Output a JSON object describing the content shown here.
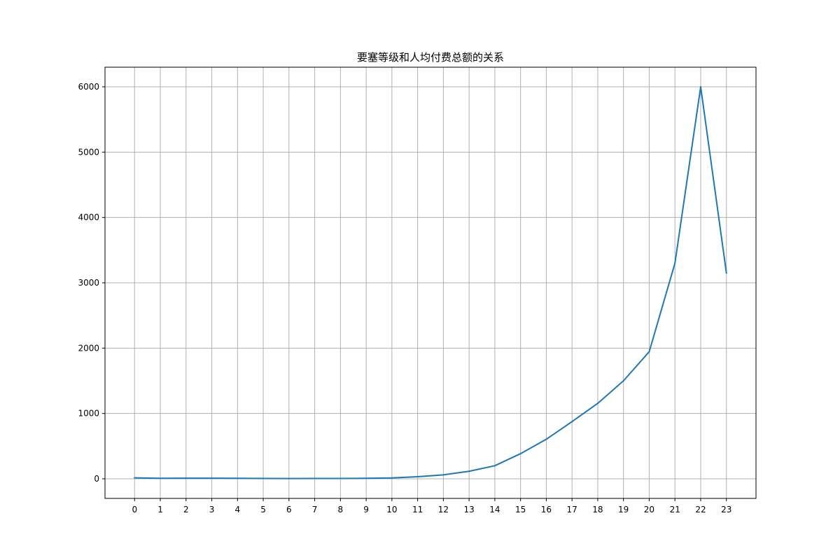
{
  "chart_data": {
    "type": "line",
    "title": "要塞等级和人均付费总额的关系",
    "xlabel": "",
    "ylabel": "",
    "x": [
      0,
      1,
      2,
      3,
      4,
      5,
      6,
      7,
      8,
      9,
      10,
      11,
      12,
      13,
      14,
      15,
      16,
      17,
      18,
      19,
      20,
      21,
      22,
      23
    ],
    "x_tick_labels": [
      "0",
      "1",
      "2",
      "3",
      "4",
      "5",
      "6",
      "7",
      "8",
      "9",
      "10",
      "11",
      "12",
      "13",
      "14",
      "15",
      "16",
      "17",
      "18",
      "19",
      "20",
      "21",
      "22",
      "23"
    ],
    "series": [
      {
        "color": "#1f77b4",
        "values": [
          15,
          8,
          10,
          9,
          8,
          5,
          4,
          5,
          6,
          8,
          14,
          32,
          60,
          115,
          200,
          385,
          605,
          875,
          1155,
          1500,
          1945,
          3300,
          6000,
          3150
        ]
      }
    ],
    "y_ticks": [
      0,
      1000,
      2000,
      3000,
      4000,
      5000,
      6000
    ],
    "y_tick_labels": [
      "0",
      "1000",
      "2000",
      "3000",
      "4000",
      "5000",
      "6000"
    ],
    "xlim": [
      -1.15,
      24.15
    ],
    "ylim": [
      -300,
      6300
    ],
    "grid": true,
    "legend": false
  }
}
